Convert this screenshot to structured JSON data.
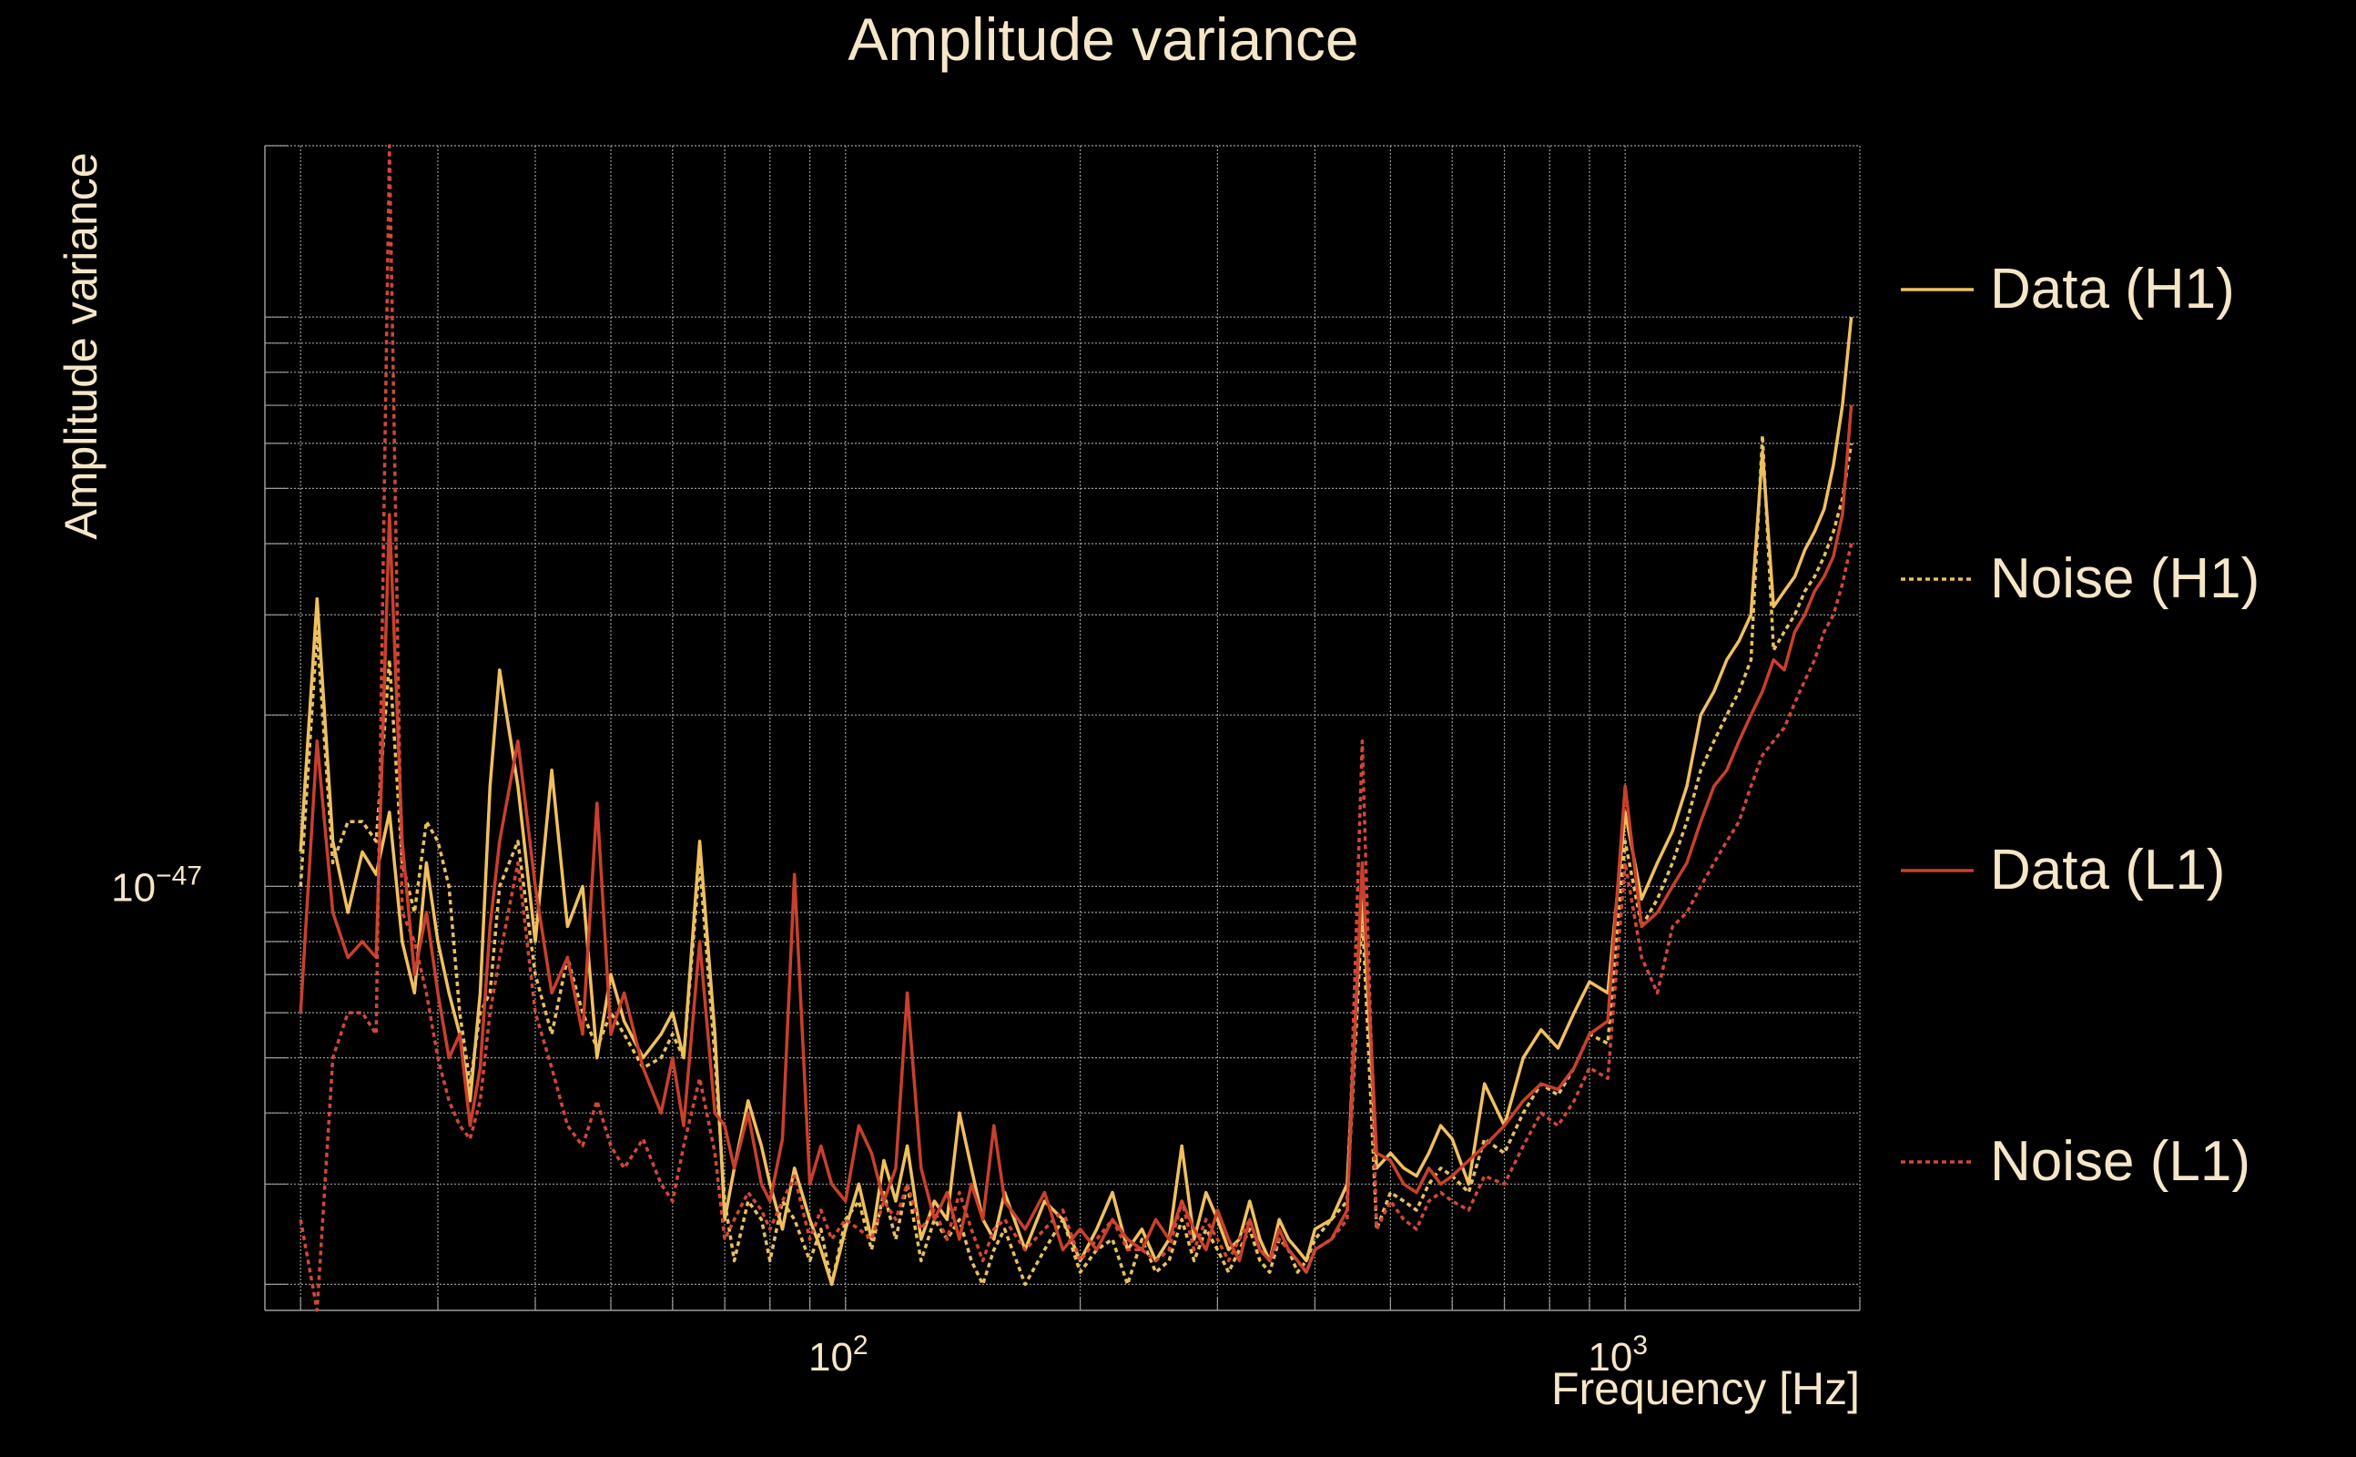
{
  "chart_data": {
    "type": "line",
    "title": "Amplitude variance",
    "xlabel": "Frequency [Hz]",
    "ylabel": "Amplitude variance",
    "x_scale": "log",
    "y_scale": "log",
    "xlim": [
      18,
      2000
    ],
    "ylim": [
      1.8e-48,
      2e-46
    ],
    "x_ticks": [
      {
        "value": 100,
        "base": "10",
        "exp": "2"
      },
      {
        "value": 1000,
        "base": "10",
        "exp": "3"
      }
    ],
    "y_ticks": [
      {
        "value": 1e-47,
        "base": "10",
        "exp": "−47"
      }
    ],
    "grid": true,
    "legend_position": "right",
    "series": [
      {
        "name": "Data (H1)",
        "color": "#f0c060",
        "dash": "solid",
        "x": [
          20,
          21,
          22,
          23,
          24,
          25,
          26,
          27,
          28,
          29,
          30,
          31,
          32,
          33,
          34,
          35,
          36,
          38,
          40,
          42,
          44,
          46,
          48,
          50,
          52,
          55,
          58,
          60,
          62,
          65,
          68,
          70,
          72,
          75,
          78,
          80,
          83,
          86,
          90,
          93,
          96,
          100,
          104,
          108,
          112,
          116,
          120,
          125,
          130,
          135,
          140,
          145,
          150,
          155,
          160,
          170,
          180,
          190,
          200,
          210,
          220,
          230,
          240,
          250,
          260,
          270,
          280,
          290,
          300,
          310,
          320,
          330,
          340,
          350,
          360,
          370,
          380,
          390,
          400,
          420,
          440,
          460,
          480,
          500,
          520,
          540,
          560,
          580,
          600,
          630,
          660,
          700,
          740,
          780,
          820,
          860,
          900,
          950,
          1000,
          1050,
          1100,
          1150,
          1200,
          1250,
          1300,
          1350,
          1400,
          1450,
          1500,
          1550,
          1600,
          1650,
          1700,
          1750,
          1800,
          1850,
          1900,
          1950
        ],
        "y": [
          1.15e-47,
          3.2e-47,
          1.2e-47,
          9e-48,
          1.15e-47,
          1.05e-47,
          1.35e-47,
          8e-48,
          6.5e-48,
          1.1e-47,
          8e-48,
          6.5e-48,
          5.5e-48,
          4.2e-48,
          6.5e-48,
          1.5e-47,
          2.4e-47,
          1.5e-47,
          8e-48,
          1.6e-47,
          8.5e-48,
          1e-47,
          5e-48,
          7e-48,
          5.8e-48,
          5e-48,
          5.5e-48,
          6e-48,
          5e-48,
          1.2e-47,
          5.5e-48,
          2.6e-48,
          3.2e-48,
          4.2e-48,
          3.5e-48,
          3e-48,
          2.5e-48,
          3.2e-48,
          2.6e-48,
          2.3e-48,
          2e-48,
          2.5e-48,
          3e-48,
          2.4e-48,
          3.3e-48,
          2.8e-48,
          3.5e-48,
          2.4e-48,
          2.8e-48,
          2.6e-48,
          4e-48,
          3.2e-48,
          2.6e-48,
          2.4e-48,
          2.9e-48,
          2.3e-48,
          2.8e-48,
          2.6e-48,
          2.2e-48,
          2.5e-48,
          2.9e-48,
          2.3e-48,
          2.5e-48,
          2.2e-48,
          2.4e-48,
          3.5e-48,
          2.4e-48,
          2.9e-48,
          2.6e-48,
          2.3e-48,
          2.4e-48,
          2.8e-48,
          2.4e-48,
          2.2e-48,
          2.6e-48,
          2.4e-48,
          2.3e-48,
          2.2e-48,
          2.5e-48,
          2.6e-48,
          3e-48,
          1e-47,
          3.2e-48,
          3.4e-48,
          3.2e-48,
          3.1e-48,
          3.4e-48,
          3.8e-48,
          3.6e-48,
          3e-48,
          4.5e-48,
          3.8e-48,
          5e-48,
          5.6e-48,
          5.2e-48,
          6e-48,
          6.8e-48,
          6.5e-48,
          1.35e-47,
          9.5e-48,
          1.1e-47,
          1.25e-47,
          1.5e-47,
          2e-47,
          2.2e-47,
          2.5e-47,
          2.7e-47,
          3e-47,
          5.8e-47,
          3.1e-47,
          3.3e-47,
          3.5e-47,
          3.9e-47,
          4.2e-47,
          4.6e-47,
          5.5e-47,
          7e-47,
          1e-46
        ]
      },
      {
        "name": "Noise (H1)",
        "color": "#e8c060",
        "dash": "dotted",
        "x": [
          20,
          21,
          22,
          23,
          24,
          25,
          26,
          27,
          28,
          29,
          30,
          31,
          32,
          33,
          34,
          35,
          36,
          38,
          40,
          42,
          44,
          46,
          48,
          50,
          52,
          55,
          58,
          60,
          62,
          65,
          68,
          70,
          72,
          75,
          78,
          80,
          83,
          86,
          90,
          93,
          96,
          100,
          104,
          108,
          112,
          116,
          120,
          125,
          130,
          135,
          140,
          145,
          150,
          155,
          160,
          170,
          180,
          190,
          200,
          210,
          220,
          230,
          240,
          250,
          260,
          270,
          280,
          290,
          300,
          310,
          320,
          330,
          340,
          350,
          360,
          370,
          380,
          390,
          400,
          420,
          440,
          460,
          480,
          500,
          520,
          540,
          560,
          580,
          600,
          630,
          660,
          700,
          740,
          780,
          820,
          860,
          900,
          950,
          1000,
          1050,
          1100,
          1150,
          1200,
          1250,
          1300,
          1350,
          1400,
          1450,
          1500,
          1550,
          1600,
          1650,
          1700,
          1750,
          1800,
          1850,
          1900,
          1950
        ],
        "y": [
          1e-47,
          2.8e-47,
          1.1e-47,
          1.3e-47,
          1.3e-47,
          1.2e-47,
          2.5e-47,
          1.1e-47,
          9e-48,
          1.3e-47,
          1.2e-47,
          1e-47,
          6e-48,
          4.5e-48,
          6e-48,
          6.5e-48,
          1e-47,
          1.2e-47,
          7e-48,
          5.5e-48,
          7.5e-48,
          6e-48,
          5.2e-48,
          6e-48,
          5.5e-48,
          4.8e-48,
          5e-48,
          5.5e-48,
          5e-48,
          1.1e-47,
          5e-48,
          2.8e-48,
          2.2e-48,
          2.8e-48,
          2.6e-48,
          2.2e-48,
          2.8e-48,
          2.6e-48,
          2.2e-48,
          2.5e-48,
          2e-48,
          2.6e-48,
          2.8e-48,
          2.3e-48,
          2.9e-48,
          2.4e-48,
          3e-48,
          2.2e-48,
          2.6e-48,
          2.4e-48,
          2.6e-48,
          2.2e-48,
          2e-48,
          2.3e-48,
          2.5e-48,
          2e-48,
          2.3e-48,
          2.6e-48,
          2.1e-48,
          2.3e-48,
          2.4e-48,
          2e-48,
          2.4e-48,
          2.1e-48,
          2.2e-48,
          2.6e-48,
          2.2e-48,
          2.5e-48,
          2.3e-48,
          2.1e-48,
          2.3e-48,
          2.5e-48,
          2.2e-48,
          2.1e-48,
          2.4e-48,
          2.3e-48,
          2.1e-48,
          2.2e-48,
          2.4e-48,
          2.6e-48,
          2.8e-48,
          9e-48,
          2.5e-48,
          2.9e-48,
          2.8e-48,
          2.7e-48,
          3e-48,
          3.2e-48,
          3.1e-48,
          2.9e-48,
          3.6e-48,
          3.4e-48,
          4e-48,
          4.5e-48,
          4.3e-48,
          4.8e-48,
          5.5e-48,
          5.3e-48,
          1.2e-47,
          8.5e-48,
          9.5e-48,
          1.1e-47,
          1.3e-47,
          1.6e-47,
          1.8e-47,
          2e-47,
          2.2e-47,
          2.5e-47,
          6.2e-47,
          2.6e-47,
          2.8e-47,
          3e-47,
          3.3e-47,
          3.5e-47,
          3.8e-47,
          4.2e-47,
          4.8e-47,
          6e-47
        ]
      },
      {
        "name": "Data (L1)",
        "color": "#c8402c",
        "dash": "solid",
        "x": [
          20,
          21,
          22,
          23,
          24,
          25,
          26,
          27,
          28,
          29,
          30,
          31,
          32,
          33,
          34,
          35,
          36,
          38,
          40,
          42,
          44,
          46,
          48,
          50,
          52,
          55,
          58,
          60,
          62,
          65,
          68,
          70,
          72,
          75,
          78,
          80,
          83,
          86,
          90,
          93,
          96,
          100,
          104,
          108,
          112,
          116,
          120,
          125,
          130,
          135,
          140,
          145,
          150,
          155,
          160,
          170,
          180,
          190,
          200,
          210,
          220,
          230,
          240,
          250,
          260,
          270,
          280,
          290,
          300,
          310,
          320,
          330,
          340,
          350,
          360,
          370,
          380,
          390,
          400,
          420,
          440,
          460,
          480,
          500,
          520,
          540,
          560,
          580,
          600,
          630,
          660,
          700,
          740,
          780,
          820,
          860,
          900,
          950,
          1000,
          1050,
          1100,
          1150,
          1200,
          1250,
          1300,
          1350,
          1400,
          1450,
          1500,
          1550,
          1600,
          1650,
          1700,
          1750,
          1800,
          1850,
          1900,
          1950
        ],
        "y": [
          6e-48,
          1.8e-47,
          9e-48,
          7.5e-48,
          8e-48,
          7.5e-48,
          4.5e-47,
          1.2e-47,
          7e-48,
          9e-48,
          6.5e-48,
          5e-48,
          5.5e-48,
          3.8e-48,
          4.8e-48,
          8.5e-48,
          1.2e-47,
          1.8e-47,
          1e-47,
          6.5e-48,
          7.5e-48,
          5.5e-48,
          1.4e-47,
          5.5e-48,
          6.5e-48,
          4.8e-48,
          4e-48,
          5e-48,
          3.8e-48,
          8e-48,
          4e-48,
          3.8e-48,
          3.2e-48,
          4e-48,
          3e-48,
          2.8e-48,
          3.6e-48,
          1.05e-47,
          3e-48,
          3.5e-48,
          3e-48,
          2.8e-48,
          3.8e-48,
          3.4e-48,
          2.8e-48,
          3.2e-48,
          6.5e-48,
          3.2e-48,
          2.6e-48,
          2.9e-48,
          2.4e-48,
          3e-48,
          2.6e-48,
          3.8e-48,
          2.8e-48,
          2.5e-48,
          2.9e-48,
          2.3e-48,
          2.5e-48,
          2.3e-48,
          2.6e-48,
          2.4e-48,
          2.3e-48,
          2.6e-48,
          2.4e-48,
          2.8e-48,
          2.5e-48,
          2.3e-48,
          2.7e-48,
          2.4e-48,
          2.2e-48,
          2.6e-48,
          2.3e-48,
          2.2e-48,
          2.5e-48,
          2.3e-48,
          2.2e-48,
          2.1e-48,
          2.3e-48,
          2.4e-48,
          2.7e-48,
          1.1e-47,
          3.4e-48,
          3.3e-48,
          3e-48,
          2.9e-48,
          3.2e-48,
          3e-48,
          3.1e-48,
          3.3e-48,
          3.5e-48,
          3.8e-48,
          4.2e-48,
          4.5e-48,
          4.4e-48,
          4.8e-48,
          5.5e-48,
          5.8e-48,
          1.5e-47,
          8.5e-48,
          9e-48,
          1e-47,
          1.1e-47,
          1.3e-47,
          1.5e-47,
          1.6e-47,
          1.8e-47,
          2e-47,
          2.2e-47,
          2.5e-47,
          2.4e-47,
          2.8e-47,
          3e-47,
          3.3e-47,
          3.5e-47,
          3.8e-47,
          4.5e-47,
          7e-47
        ]
      },
      {
        "name": "Noise (L1)",
        "color": "#d04838",
        "dash": "dotted",
        "x": [
          20,
          21,
          22,
          23,
          24,
          25,
          26,
          27,
          28,
          29,
          30,
          31,
          32,
          33,
          34,
          35,
          36,
          38,
          40,
          42,
          44,
          46,
          48,
          50,
          52,
          55,
          58,
          60,
          62,
          65,
          68,
          70,
          72,
          75,
          78,
          80,
          83,
          86,
          90,
          93,
          96,
          100,
          104,
          108,
          112,
          116,
          120,
          125,
          130,
          135,
          140,
          145,
          150,
          155,
          160,
          170,
          180,
          190,
          200,
          210,
          220,
          230,
          240,
          250,
          260,
          270,
          280,
          290,
          300,
          310,
          320,
          330,
          340,
          350,
          360,
          370,
          380,
          390,
          400,
          420,
          440,
          460,
          480,
          500,
          520,
          540,
          560,
          580,
          600,
          630,
          660,
          700,
          740,
          780,
          820,
          860,
          900,
          950,
          1000,
          1050,
          1100,
          1150,
          1200,
          1250,
          1300,
          1350,
          1400,
          1450,
          1500,
          1550,
          1600,
          1650,
          1700,
          1750,
          1800,
          1850,
          1900,
          1950
        ],
        "y": [
          2.6e-48,
          1.8e-48,
          5e-48,
          6e-48,
          6e-48,
          5.5e-48,
          2e-46,
          9e-48,
          8e-48,
          6.5e-48,
          5e-48,
          4.2e-48,
          3.8e-48,
          3.6e-48,
          4.2e-48,
          6e-48,
          7.5e-48,
          1.1e-47,
          6e-48,
          4.8e-48,
          3.8e-48,
          3.5e-48,
          4.2e-48,
          3.5e-48,
          3.2e-48,
          3.6e-48,
          3e-48,
          2.8e-48,
          3.5e-48,
          4.6e-48,
          3.4e-48,
          2.4e-48,
          2.6e-48,
          2.9e-48,
          2.7e-48,
          2.5e-48,
          2.8e-48,
          3.1e-48,
          2.4e-48,
          2.7e-48,
          2.4e-48,
          2.6e-48,
          2.5e-48,
          2.4e-48,
          2.8e-48,
          2.6e-48,
          3e-48,
          2.5e-48,
          2.7e-48,
          2.4e-48,
          2.9e-48,
          2.5e-48,
          2.2e-48,
          2.5e-48,
          2.6e-48,
          2.3e-48,
          2.5e-48,
          2.7e-48,
          2.2e-48,
          2.4e-48,
          2.6e-48,
          2.3e-48,
          2.3e-48,
          2.2e-48,
          2.3e-48,
          2.8e-48,
          2.3e-48,
          2.6e-48,
          2.4e-48,
          2.2e-48,
          2.4e-48,
          2.6e-48,
          2.3e-48,
          2.2e-48,
          2.4e-48,
          2.3e-48,
          2.2e-48,
          2.1e-48,
          2.3e-48,
          2.4e-48,
          2.6e-48,
          1.8e-47,
          2.5e-48,
          2.8e-48,
          2.6e-48,
          2.5e-48,
          2.8e-48,
          2.9e-48,
          2.8e-48,
          2.7e-48,
          3.1e-48,
          3e-48,
          3.5e-48,
          4e-48,
          3.8e-48,
          4.2e-48,
          4.8e-48,
          4.6e-48,
          1.1e-47,
          7.5e-48,
          6.5e-48,
          8.5e-48,
          9e-48,
          1e-47,
          1.1e-47,
          1.2e-47,
          1.3e-47,
          1.5e-47,
          1.7e-47,
          1.8e-47,
          1.9e-47,
          2.1e-47,
          2.3e-47,
          2.5e-47,
          2.8e-47,
          3e-47,
          3.4e-47,
          4e-47
        ]
      }
    ],
    "text_color": "#f5e6c8",
    "grid_color": "#9a9a9a",
    "background": "#000000"
  }
}
